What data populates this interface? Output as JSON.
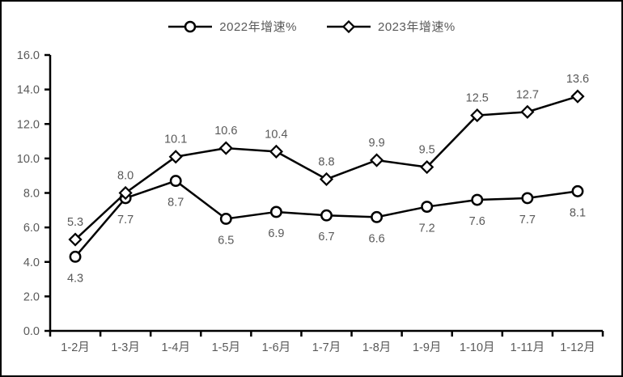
{
  "chart_data": {
    "type": "line",
    "title": "",
    "xlabel": "",
    "ylabel": "",
    "categories": [
      "1-2月",
      "1-3月",
      "1-4月",
      "1-5月",
      "1-6月",
      "1-7月",
      "1-8月",
      "1-9月",
      "1-10月",
      "1-11月",
      "1-12月"
    ],
    "series": [
      {
        "name": "2022年增速%",
        "marker": "circle",
        "label_position": "below",
        "values": [
          4.3,
          7.7,
          8.7,
          6.5,
          6.9,
          6.7,
          6.6,
          7.2,
          7.6,
          7.7,
          8.1
        ]
      },
      {
        "name": "2023年增速%",
        "marker": "diamond",
        "label_position": "above",
        "values": [
          5.3,
          8.0,
          10.1,
          10.6,
          10.4,
          8.8,
          9.9,
          9.5,
          12.5,
          12.7,
          13.6
        ]
      }
    ],
    "ylim": [
      0,
      16
    ],
    "y_tick_step": 2,
    "y_tick_labels": [
      "0.0",
      "2.0",
      "4.0",
      "6.0",
      "8.0",
      "10.0",
      "12.0",
      "14.0",
      "16.0"
    ],
    "grid": false,
    "legend_position": "top",
    "colors": {
      "line": "#000000",
      "marker_fill": "#ffffff",
      "label_text": "#595959",
      "axis": "#000000",
      "background": "#ffffff",
      "border": "#000000"
    }
  }
}
